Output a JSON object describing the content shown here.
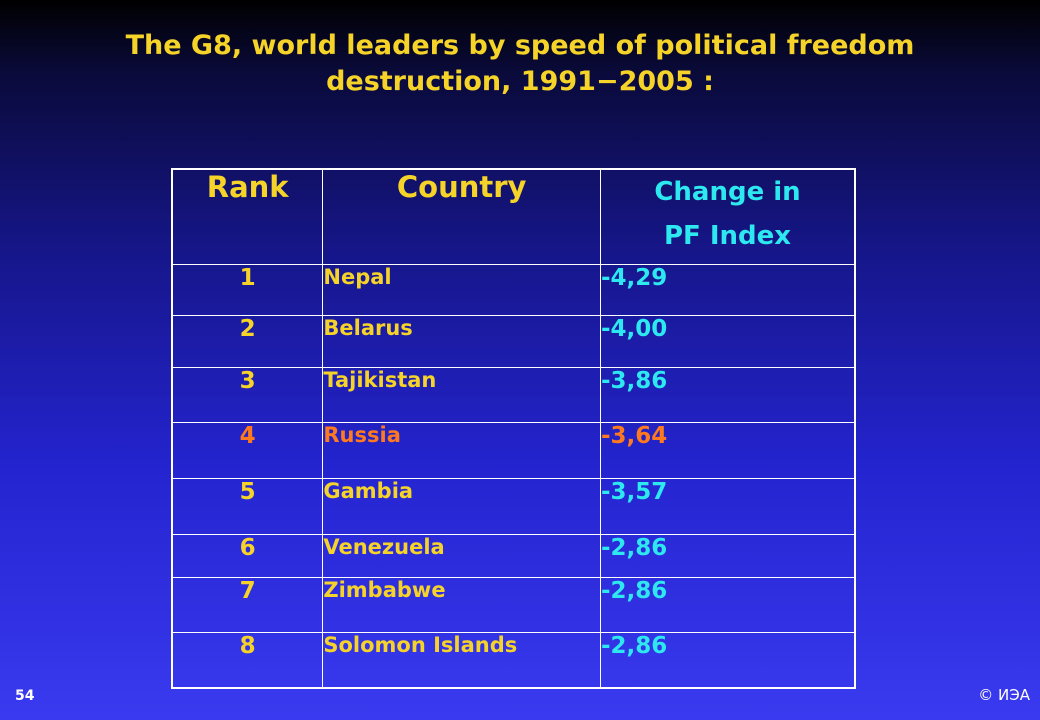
{
  "slide": {
    "title_line1": "The G8, world leaders by speed of political freedom",
    "title_line2": "destruction, 1991−2005 :",
    "page_number": "54",
    "copyright": "© ИЭА"
  },
  "table": {
    "headers": {
      "rank": "Rank",
      "country": "Country",
      "change_line1": "Change in",
      "change_line2": "PF Index"
    },
    "rows": [
      {
        "rank": "1",
        "country": "Nepal",
        "change": "-4,29"
      },
      {
        "rank": "2",
        "country": "Belarus",
        "change": "-4,00"
      },
      {
        "rank": "3",
        "country": "Tajikistan",
        "change": "-3,86"
      },
      {
        "rank": "4",
        "country": "Russia",
        "change": "-3,64"
      },
      {
        "rank": "5",
        "country": "Gambia",
        "change": "-3,57"
      },
      {
        "rank": "6",
        "country": "Venezuela",
        "change": "-2,86"
      },
      {
        "rank": "7",
        "country": "Zimbabwe",
        "change": "-2,86"
      },
      {
        "rank": "8",
        "country": "Solomon Islands",
        "change": "-2,86"
      }
    ]
  },
  "colors": {
    "title": "#f5d328",
    "header_rank_country": "#f5d328",
    "header_change": "#2ee8f0",
    "highlight_row": "#ff7a1e",
    "background_top": "#000000",
    "background_bottom": "#3a3af0"
  }
}
